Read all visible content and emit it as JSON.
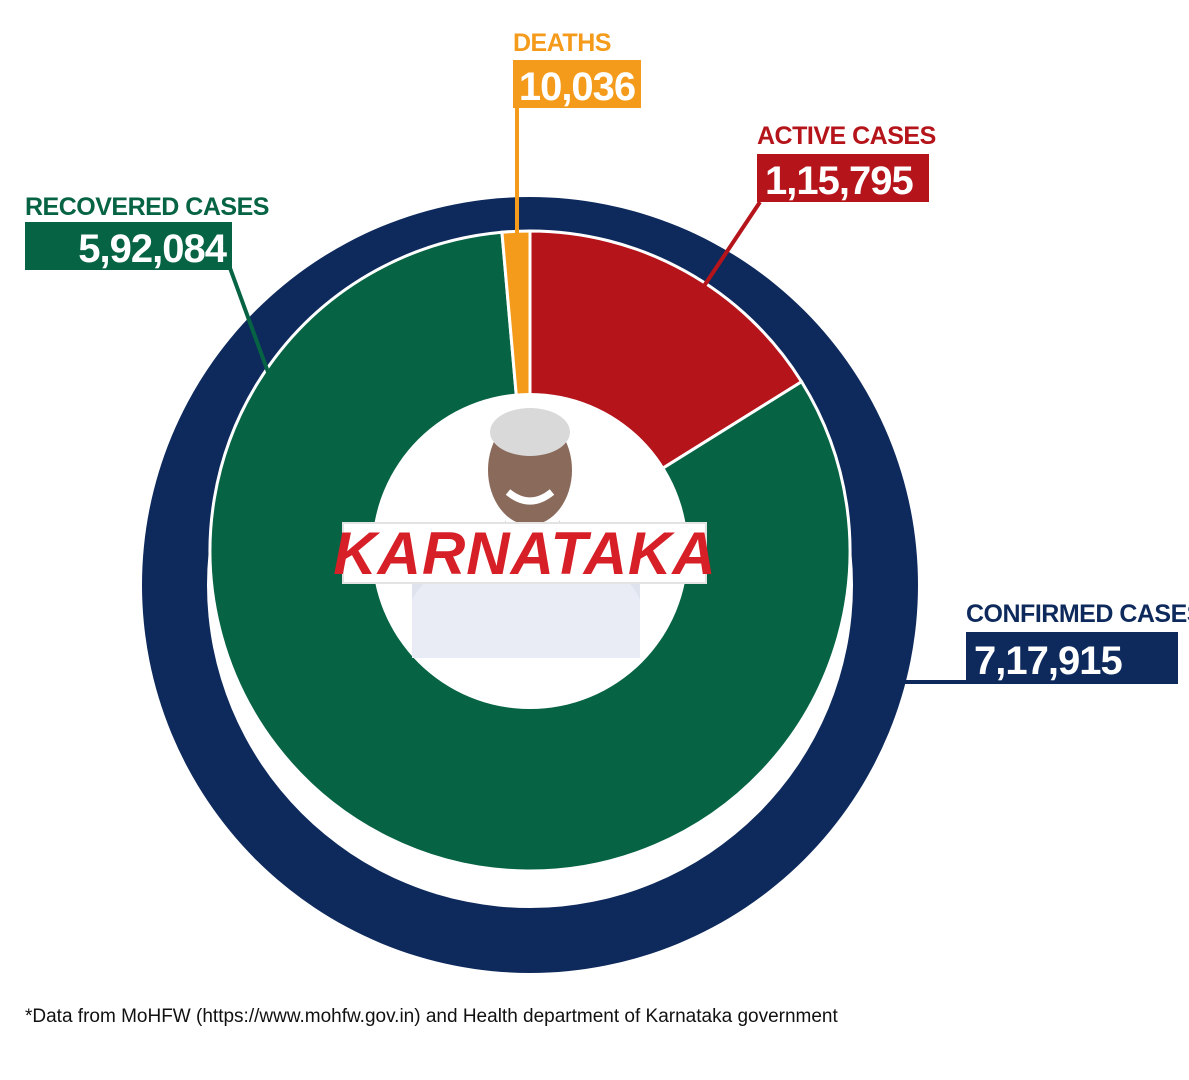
{
  "chart_data": {
    "type": "pie",
    "center_label": "KARNATAKA",
    "total": {
      "label": "CONFIRMED CASES",
      "value": 717915,
      "display": "7,17,915",
      "color": "#0e2a5c"
    },
    "slices": [
      {
        "key": "active",
        "label": "ACTIVE CASES",
        "value": 115795,
        "display": "1,15,795",
        "color": "#b5141a"
      },
      {
        "key": "recovered",
        "label": "RECOVERED CASES",
        "value": 592084,
        "display": "5,92,084",
        "color": "#066344"
      },
      {
        "key": "deaths",
        "label": "DEATHS",
        "value": 10036,
        "display": "10,036",
        "color": "#f59b1b"
      }
    ],
    "footnote": "*Data from MoHFW (https://www.mohfw.gov.in) and Health department of Karnataka government"
  }
}
